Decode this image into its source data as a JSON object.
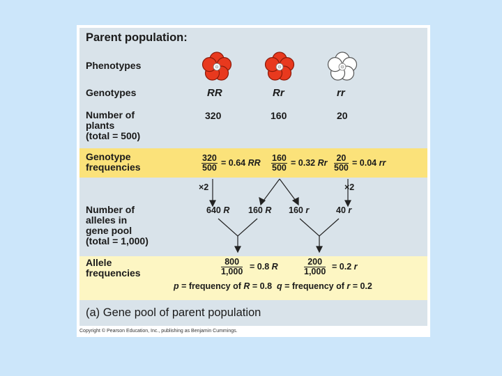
{
  "title": "Parent population:",
  "rows": {
    "phenotypes": "Phenotypes",
    "genotypes": "Genotypes",
    "number_of_plants": [
      "Number of",
      "plants",
      "(total = 500)"
    ],
    "genotype_frequencies": [
      "Genotype",
      "frequencies"
    ],
    "number_of_alleles": [
      "Number of",
      "alleles in",
      "gene pool",
      "(total = 1,000)"
    ],
    "allele_frequencies": [
      "Allele",
      "frequencies"
    ]
  },
  "genotypes": [
    "RR",
    "Rr",
    "rr"
  ],
  "counts": [
    "320",
    "160",
    "20"
  ],
  "genotype_freq": [
    {
      "num": "320",
      "den": "500",
      "result": "= 0.64 ",
      "symbol": "RR"
    },
    {
      "num": "160",
      "den": "500",
      "result": "= 0.32 ",
      "symbol": "Rr"
    },
    {
      "num": "20",
      "den": "500",
      "result": "= 0.04 ",
      "symbol": "rr"
    }
  ],
  "multipliers": [
    "×2",
    "×2"
  ],
  "alleles": [
    {
      "count": "640 ",
      "symbol": "R"
    },
    {
      "count": "160 ",
      "symbol": "R"
    },
    {
      "count": "160 ",
      "symbol": "r"
    },
    {
      "count": "40 ",
      "symbol": "r"
    }
  ],
  "allele_freq": [
    {
      "num": "800",
      "den": "1,000",
      "result": "= 0.8 ",
      "symbol": "R"
    },
    {
      "num": "200",
      "den": "1,000",
      "result": "= 0.2 ",
      "symbol": "r"
    }
  ],
  "summary": {
    "p": "p",
    "p_text": " = frequency of ",
    "p_sym": "R",
    "p_val": " = 0.8",
    "q": "q",
    "q_text": " = frequency of ",
    "q_sym": "r",
    "q_val": " = 0.2"
  },
  "caption": "(a) Gene pool of parent population",
  "copyright": "Copyright © Pearson Education, Inc., publishing as Benjamin Cummings.",
  "colors": {
    "red_flower": "#e8391e",
    "white_flower": "#ffffff",
    "background": "#cce6fa"
  }
}
